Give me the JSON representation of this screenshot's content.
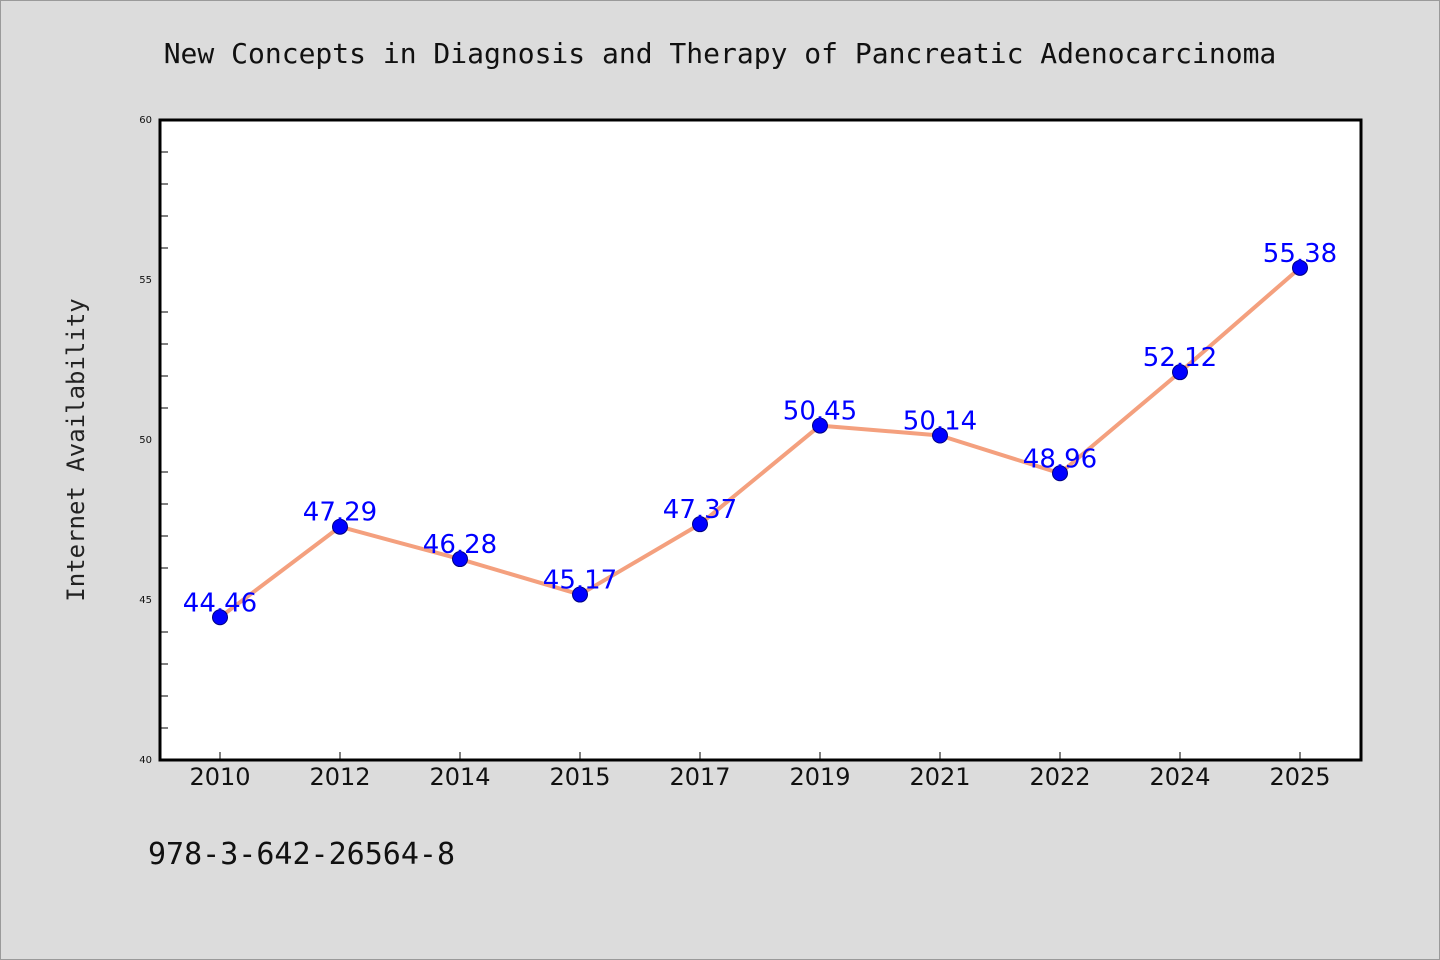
{
  "chart_data": {
    "type": "line",
    "title": "New Concepts in Diagnosis and Therapy of Pancreatic Adenocarcinoma",
    "ylabel": "Internet Availability",
    "xlabel": "",
    "categories": [
      "2010",
      "2012",
      "2014",
      "2015",
      "2017",
      "2019",
      "2021",
      "2022",
      "2024",
      "2025"
    ],
    "series": [
      {
        "values": [
          44.46,
          47.29,
          46.28,
          45.17,
          47.37,
          50.45,
          50.14,
          48.96,
          52.12,
          55.38
        ],
        "labels": [
          "44.46",
          "47.29",
          "46.28",
          "45.17",
          "47.37",
          "50.45",
          "50.14",
          "48.96",
          "52.12",
          "55.38"
        ]
      }
    ],
    "ylim": [
      40,
      60
    ],
    "yticks": [
      "40",
      "45",
      "50",
      "55",
      "60"
    ],
    "grid": false,
    "legend": "none",
    "colors": {
      "line": "#f4a07e",
      "marker": "#0000ff",
      "data_label": "#0000ff",
      "background": "#dcdcdc",
      "plot_background": "#ffffff"
    }
  },
  "footer": {
    "isbn": "978-3-642-26564-8"
  }
}
